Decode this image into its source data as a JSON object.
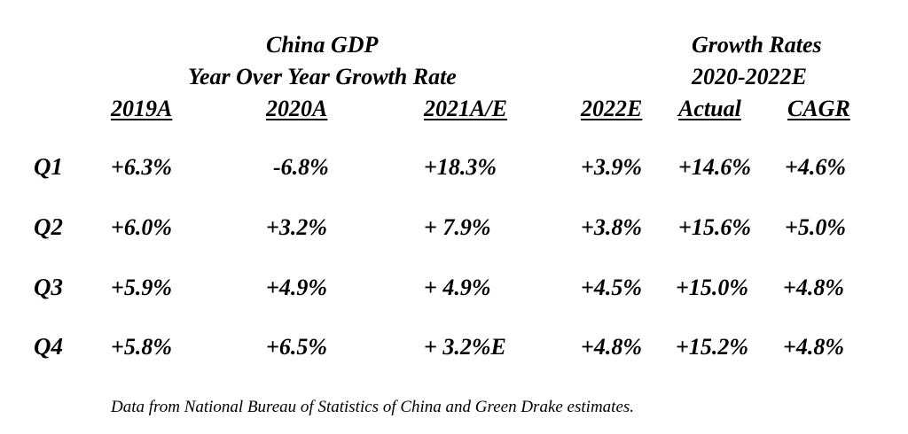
{
  "titles": {
    "left_line1": "China GDP",
    "left_line2": "Year Over Year Growth Rate",
    "right_line1": "Growth Rates",
    "right_line2": "2020-2022E"
  },
  "columns": [
    "2019A",
    "2020A",
    "2021A/E",
    "2022E",
    "Actual",
    "CAGR"
  ],
  "rows": [
    {
      "label": "Q1",
      "values": [
        "+6.3%",
        "-6.8%",
        "+18.3%",
        "+3.9%",
        "+14.6%",
        "+4.6%"
      ]
    },
    {
      "label": "Q2",
      "values": [
        "+6.0%",
        "+3.2%",
        "+ 7.9%",
        "+3.8%",
        "+15.6%",
        "+5.0%"
      ]
    },
    {
      "label": "Q3",
      "values": [
        "+5.9%",
        "+4.9%",
        "+ 4.9%",
        "+4.5%",
        "+15.0%",
        "+4.8%"
      ]
    },
    {
      "label": "Q4",
      "values": [
        "+5.8%",
        "+6.5%",
        "+ 3.2%E",
        "+4.8%",
        "+15.2%",
        "+4.8%"
      ]
    }
  ],
  "footnote": "Data from National Bureau of Statistics of China and Green Drake estimates."
}
